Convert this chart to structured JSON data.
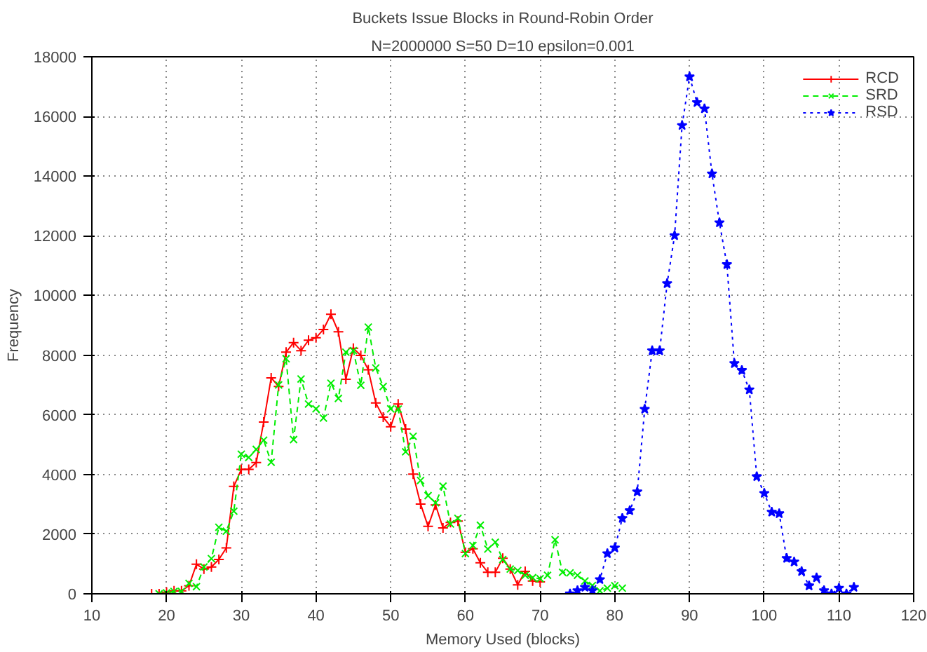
{
  "chart_data": {
    "type": "line",
    "title": "Buckets Issue Blocks in Round-Robin Order",
    "subtitle": "N=2000000 S=50 D=10 epsilon=0.001",
    "xlabel": "Memory Used (blocks)",
    "ylabel": "Frequency",
    "xlim": [
      10,
      120
    ],
    "ylim": [
      0,
      18000
    ],
    "xticks": [
      10,
      20,
      30,
      40,
      50,
      60,
      70,
      80,
      90,
      100,
      110,
      120
    ],
    "yticks": [
      0,
      2000,
      4000,
      6000,
      8000,
      10000,
      12000,
      14000,
      16000,
      18000
    ],
    "grid": true,
    "legend": "top right",
    "series": [
      {
        "name": "RCD",
        "color": "#ff0000",
        "marker": "cross",
        "line_style": "solid",
        "x": [
          18,
          19,
          20,
          21,
          22,
          23,
          24,
          25,
          26,
          27,
          28,
          29,
          30,
          31,
          32,
          33,
          34,
          35,
          36,
          37,
          38,
          39,
          40,
          41,
          42,
          43,
          44,
          45,
          46,
          47,
          48,
          49,
          50,
          51,
          52,
          53,
          54,
          55,
          56,
          57,
          58,
          59,
          60,
          61,
          62,
          63,
          64,
          65,
          66,
          67,
          68,
          69,
          70
        ],
        "values": [
          0,
          0,
          50,
          100,
          100,
          270,
          990,
          830,
          900,
          1150,
          1540,
          3600,
          4170,
          4170,
          4400,
          5760,
          7240,
          6950,
          8100,
          8420,
          8150,
          8500,
          8580,
          8860,
          9370,
          8780,
          7190,
          8230,
          7990,
          7510,
          6400,
          5920,
          5600,
          6360,
          5520,
          4010,
          3010,
          2260,
          2980,
          2210,
          2390,
          2440,
          1390,
          1510,
          1040,
          720,
          720,
          1190,
          830,
          300,
          750,
          430,
          400
        ]
      },
      {
        "name": "SRD",
        "color": "#00ee00",
        "marker": "x",
        "line_style": "dashed",
        "x": [
          19,
          20,
          21,
          22,
          23,
          24,
          25,
          26,
          27,
          28,
          29,
          30,
          31,
          32,
          33,
          34,
          35,
          36,
          37,
          38,
          39,
          40,
          41,
          42,
          43,
          44,
          45,
          46,
          47,
          48,
          49,
          50,
          51,
          52,
          53,
          54,
          55,
          56,
          57,
          58,
          59,
          60,
          61,
          62,
          63,
          64,
          65,
          66,
          67,
          68,
          69,
          70,
          71,
          72,
          73,
          74,
          75,
          76,
          77,
          78,
          79,
          80,
          81
        ],
        "values": [
          0,
          30,
          80,
          80,
          350,
          240,
          900,
          1180,
          2230,
          2100,
          2770,
          4680,
          4570,
          4840,
          5150,
          4410,
          7000,
          7880,
          5170,
          7200,
          6360,
          6200,
          5890,
          7060,
          6550,
          8100,
          8150,
          6990,
          8940,
          7570,
          6950,
          6200,
          6190,
          4760,
          5280,
          3800,
          3290,
          3050,
          3610,
          2340,
          2530,
          1350,
          1620,
          2300,
          1500,
          1730,
          1150,
          830,
          780,
          620,
          540,
          510,
          620,
          1810,
          720,
          700,
          620,
          430,
          280,
          100,
          190,
          270,
          190
        ]
      },
      {
        "name": "RSD",
        "color": "#0000ff",
        "marker": "star",
        "line_style": "dotted",
        "x": [
          74,
          75,
          76,
          77,
          78,
          79,
          80,
          81,
          82,
          83,
          84,
          85,
          86,
          87,
          88,
          89,
          90,
          91,
          92,
          93,
          94,
          95,
          96,
          97,
          98,
          99,
          100,
          101,
          102,
          103,
          104,
          105,
          106,
          107,
          108,
          109,
          110,
          111,
          112
        ],
        "values": [
          0,
          110,
          220,
          110,
          480,
          1350,
          1540,
          2530,
          2790,
          3420,
          6190,
          8150,
          8150,
          10400,
          12010,
          15700,
          17330,
          16470,
          16260,
          14080,
          12440,
          11040,
          7720,
          7490,
          6840,
          3930,
          3370,
          2740,
          2690,
          1190,
          1070,
          750,
          270,
          540,
          110,
          0,
          190,
          0,
          220
        ]
      }
    ]
  }
}
